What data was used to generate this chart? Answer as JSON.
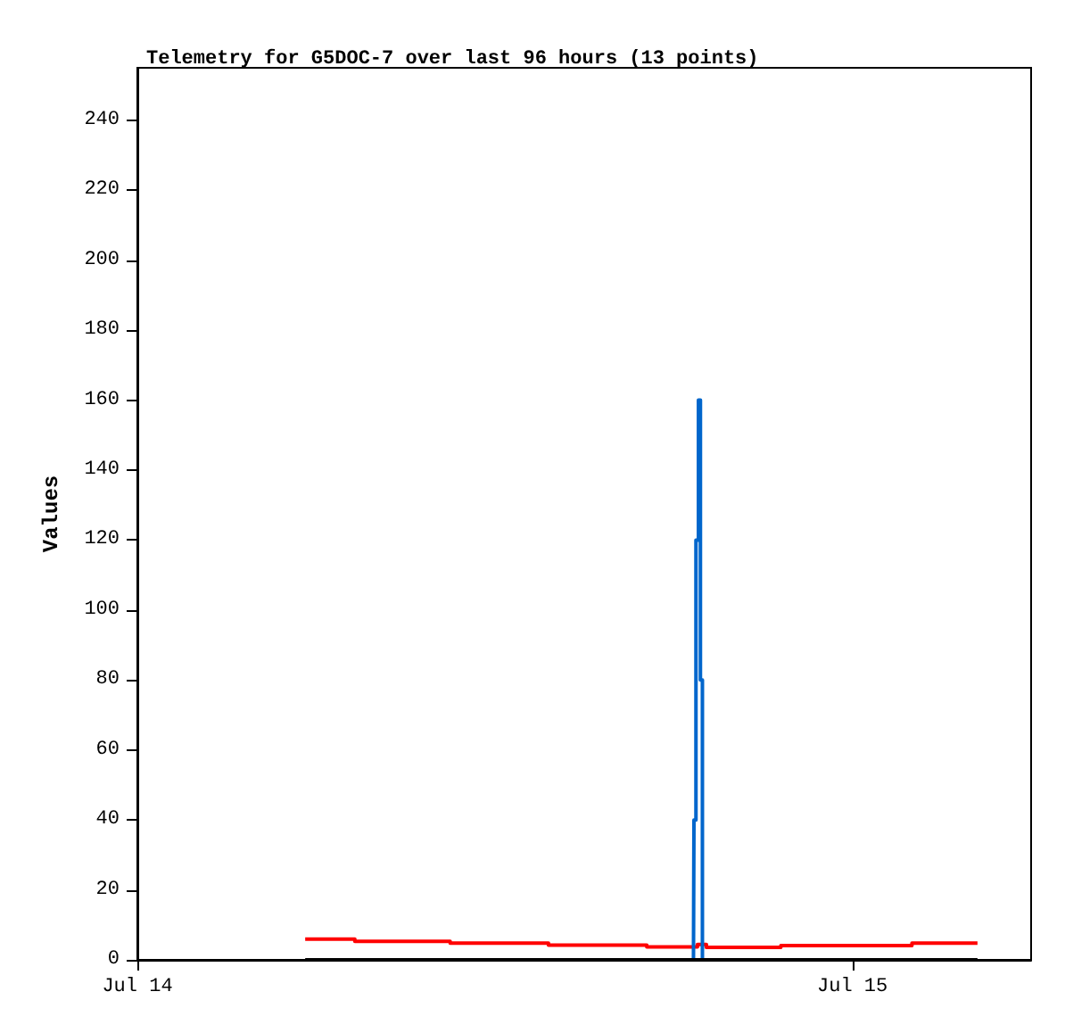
{
  "chart_data": {
    "type": "step",
    "title": "Telemetry for G5DOC-7 over last 96 hours (13 points)",
    "ylabel": "Values",
    "xlim": [
      "--07-14T00:00",
      "--07-15T06:00"
    ],
    "xticks": [
      {
        "value": "--07-14",
        "label": "Jul 14"
      },
      {
        "value": "--07-15",
        "label": "Jul 15"
      }
    ],
    "ylim": [
      0,
      255
    ],
    "yticks": [
      0,
      20,
      40,
      60,
      80,
      100,
      120,
      140,
      160,
      180,
      200,
      220,
      240
    ],
    "grid": false,
    "marker": "none",
    "line_style": "solid",
    "series": [
      {
        "color": "#ff0000",
        "x": [
          "--07-14T05:38",
          "--07-14T07:18",
          "--07-14T10:30",
          "--07-14T13:48",
          "--07-14T17:06",
          "--07-14T18:48",
          "--07-14T19:06",
          "--07-14T21:36",
          "--07-15T02:00",
          "--07-15T04:12"
        ],
        "values": [
          5.9,
          5.3,
          4.8,
          4.2,
          3.7,
          4.4,
          3.6,
          4.1,
          4.8,
          4.8
        ]
      },
      {
        "color": "#0066cc",
        "x": [
          "--07-14T18:40",
          "--07-14T18:41",
          "--07-14T18:45",
          "--07-14T18:50",
          "--07-14T18:54",
          "--07-14T18:58"
        ],
        "values": [
          0,
          40,
          120,
          160,
          80,
          0
        ]
      },
      {
        "color": "#000000",
        "x": [
          "--07-14T05:38",
          "--07-15T04:12"
        ],
        "values": [
          0,
          0
        ]
      }
    ]
  }
}
